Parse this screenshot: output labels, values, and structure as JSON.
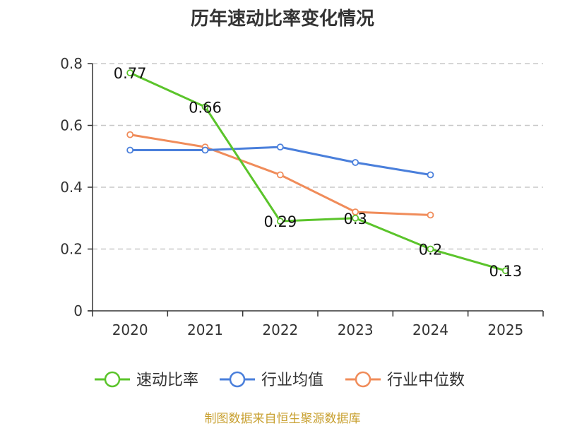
{
  "chart_data": {
    "type": "line",
    "title": "历年速动比率变化情况",
    "categories": [
      "2020",
      "2021",
      "2022",
      "2023",
      "2024",
      "2025"
    ],
    "ylim": [
      0,
      0.8
    ],
    "yticks": [
      "0",
      "0.2",
      "0.4",
      "0.6",
      "0.8"
    ],
    "ytick_values": [
      0,
      0.2,
      0.4,
      0.6,
      0.8
    ],
    "grid": true,
    "legend_position": "bottom",
    "series": [
      {
        "name": "速动比率",
        "color": "#5bc42b",
        "values": [
          0.77,
          0.66,
          0.29,
          0.3,
          0.2,
          0.13
        ],
        "labels": [
          "0.77",
          "0.66",
          "0.29",
          "0.3",
          "0.2",
          "0.13"
        ]
      },
      {
        "name": "行业均值",
        "color": "#4a7fdb",
        "values": [
          0.52,
          0.52,
          0.53,
          0.48,
          0.44,
          null
        ]
      },
      {
        "name": "行业中位数",
        "color": "#f08c5a",
        "values": [
          0.57,
          0.53,
          0.44,
          0.32,
          0.31,
          null
        ]
      }
    ]
  },
  "source_note": "制图数据来自恒生聚源数据库"
}
